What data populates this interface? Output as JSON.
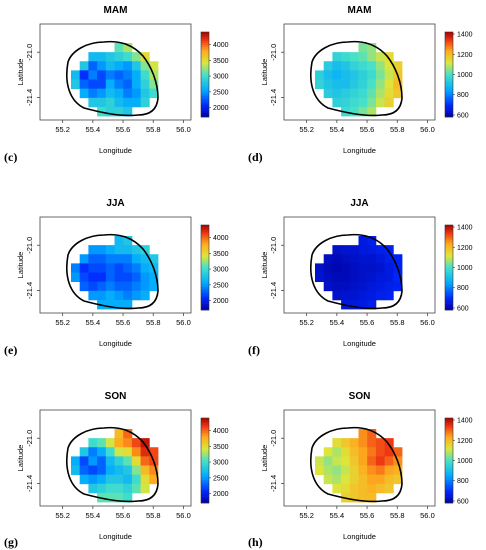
{
  "panel_letters": [
    "(c)",
    "(d)",
    "(e)",
    "(f)",
    "(g)",
    "(h)"
  ],
  "chart_data": [
    {
      "type": "heatmap",
      "title": "MAM",
      "xlabel": "Longitude",
      "ylabel": "Latitude",
      "xlim": [
        55.05,
        56.05
      ],
      "ylim": [
        -21.6,
        -20.75
      ],
      "x_ticks": [
        "55.2",
        "55.4",
        "55.6",
        "55.8",
        "56.0"
      ],
      "y_ticks": [
        "-21.0",
        "-21.4"
      ],
      "colorbar": {
        "min": 1700,
        "max": 4400,
        "ticks": [
          "2000",
          "2500",
          "3000",
          "3500",
          "4000"
        ]
      },
      "values": [
        [
          0,
          0,
          0,
          0,
          0,
          3100,
          3300,
          0,
          0,
          0
        ],
        [
          0,
          0,
          2700,
          2700,
          2800,
          2900,
          3000,
          3200,
          3500,
          0
        ],
        [
          0,
          2800,
          2300,
          2500,
          2700,
          2600,
          2500,
          2800,
          3200,
          3400
        ],
        [
          2700,
          2100,
          2400,
          2200,
          2400,
          2300,
          2400,
          2600,
          3000,
          3300
        ],
        [
          2800,
          2300,
          2200,
          2200,
          2600,
          2400,
          2300,
          2600,
          2900,
          3200
        ],
        [
          0,
          2600,
          2400,
          2500,
          2700,
          2600,
          2400,
          2500,
          2800,
          3000
        ],
        [
          0,
          0,
          2800,
          2800,
          2900,
          2700,
          2600,
          2600,
          2900,
          0
        ],
        [
          0,
          0,
          0,
          3000,
          2900,
          2900,
          2800,
          0,
          0,
          0
        ]
      ]
    },
    {
      "type": "heatmap",
      "title": "MAM",
      "xlabel": "Longitude",
      "ylabel": "Latitude",
      "xlim": [
        55.05,
        56.05
      ],
      "ylim": [
        -21.6,
        -20.75
      ],
      "x_ticks": [
        "55.2",
        "55.4",
        "55.6",
        "55.8",
        "56.0"
      ],
      "y_ticks": [
        "-21.0",
        "-21.4"
      ],
      "colorbar": {
        "min": 580,
        "max": 1420,
        "ticks": [
          "600",
          "800",
          "1000",
          "1200",
          "1400"
        ]
      },
      "values": [
        [
          0,
          0,
          0,
          0,
          0,
          1040,
          1060,
          0,
          0,
          0
        ],
        [
          0,
          0,
          960,
          980,
          1000,
          1020,
          1060,
          1100,
          1140,
          0
        ],
        [
          0,
          940,
          900,
          920,
          960,
          980,
          1000,
          1060,
          1120,
          1160
        ],
        [
          950,
          900,
          880,
          900,
          920,
          950,
          980,
          1040,
          1100,
          1180
        ],
        [
          960,
          920,
          900,
          900,
          930,
          960,
          1000,
          1060,
          1120,
          1200
        ],
        [
          0,
          940,
          920,
          940,
          960,
          980,
          1020,
          1080,
          1140,
          1180
        ],
        [
          0,
          0,
          950,
          960,
          980,
          1000,
          1040,
          1100,
          1160,
          0
        ],
        [
          0,
          0,
          0,
          980,
          1000,
          1040,
          1080,
          0,
          0,
          0
        ]
      ]
    },
    {
      "type": "heatmap",
      "title": "JJA",
      "xlabel": "Longitude",
      "ylabel": "Latitude",
      "xlim": [
        55.05,
        56.05
      ],
      "ylim": [
        -21.6,
        -20.75
      ],
      "x_ticks": [
        "55.2",
        "55.4",
        "55.6",
        "55.8",
        "56.0"
      ],
      "y_ticks": [
        "-21.0",
        "-21.4"
      ],
      "colorbar": {
        "min": 1700,
        "max": 4400,
        "ticks": [
          "2000",
          "2500",
          "3000",
          "3500",
          "4000"
        ]
      },
      "values": [
        [
          0,
          0,
          0,
          0,
          0,
          2700,
          2800,
          0,
          0,
          0
        ],
        [
          0,
          0,
          2500,
          2500,
          2600,
          2700,
          2700,
          2800,
          2900,
          0
        ],
        [
          0,
          2500,
          2300,
          2300,
          2400,
          2400,
          2400,
          2600,
          2700,
          2800
        ],
        [
          2400,
          2100,
          2200,
          2200,
          2300,
          2200,
          2300,
          2400,
          2600,
          2700
        ],
        [
          2500,
          2200,
          2100,
          2100,
          2300,
          2200,
          2200,
          2300,
          2500,
          2600
        ],
        [
          0,
          2300,
          2200,
          2300,
          2400,
          2300,
          2300,
          2400,
          2500,
          2600
        ],
        [
          0,
          0,
          2500,
          2500,
          2600,
          2500,
          2400,
          2500,
          2600,
          0
        ],
        [
          0,
          0,
          0,
          2600,
          2600,
          2600,
          2600,
          0,
          0,
          0
        ]
      ]
    },
    {
      "type": "heatmap",
      "title": "JJA",
      "xlabel": "Longitude",
      "ylabel": "Latitude",
      "xlim": [
        55.05,
        56.05
      ],
      "ylim": [
        -21.6,
        -20.75
      ],
      "x_ticks": [
        "55.2",
        "55.4",
        "55.6",
        "55.8",
        "56.0"
      ],
      "y_ticks": [
        "-21.0",
        "-21.4"
      ],
      "colorbar": {
        "min": 580,
        "max": 1420,
        "ticks": [
          "600",
          "800",
          "1000",
          "1200",
          "1400"
        ]
      },
      "values": [
        [
          0,
          0,
          0,
          0,
          0,
          660,
          670,
          0,
          0,
          0
        ],
        [
          0,
          0,
          630,
          640,
          640,
          650,
          660,
          670,
          680,
          0
        ],
        [
          0,
          620,
          610,
          620,
          630,
          640,
          640,
          650,
          670,
          680
        ],
        [
          630,
          610,
          600,
          610,
          620,
          630,
          630,
          640,
          660,
          680
        ],
        [
          640,
          620,
          610,
          610,
          620,
          630,
          640,
          650,
          660,
          690
        ],
        [
          0,
          630,
          620,
          620,
          630,
          640,
          650,
          660,
          670,
          680
        ],
        [
          0,
          0,
          630,
          640,
          640,
          650,
          660,
          670,
          680,
          0
        ],
        [
          0,
          0,
          0,
          650,
          650,
          660,
          670,
          0,
          0,
          0
        ]
      ]
    },
    {
      "type": "heatmap",
      "title": "SON",
      "xlabel": "Longitude",
      "ylabel": "Latitude",
      "xlim": [
        55.05,
        56.05
      ],
      "ylim": [
        -21.6,
        -20.75
      ],
      "x_ticks": [
        "55.2",
        "55.4",
        "55.6",
        "55.8",
        "56.0"
      ],
      "y_ticks": [
        "-21.0",
        "-21.4"
      ],
      "colorbar": {
        "min": 1700,
        "max": 4400,
        "ticks": [
          "2000",
          "2500",
          "3000",
          "3500",
          "4000"
        ]
      },
      "values": [
        [
          0,
          0,
          0,
          0,
          0,
          3700,
          4000,
          0,
          0,
          0
        ],
        [
          0,
          0,
          3000,
          3100,
          3400,
          3800,
          3900,
          4100,
          4300,
          0
        ],
        [
          0,
          2800,
          2400,
          2600,
          3000,
          3400,
          3500,
          3900,
          4200,
          4100
        ],
        [
          2600,
          2200,
          2500,
          2300,
          2700,
          2900,
          3100,
          3500,
          4000,
          4100
        ],
        [
          2700,
          2300,
          2200,
          2300,
          2600,
          2700,
          2800,
          3200,
          3700,
          3900
        ],
        [
          0,
          2600,
          2500,
          2600,
          2800,
          2800,
          2700,
          3000,
          3500,
          3800
        ],
        [
          0,
          0,
          2800,
          2900,
          3000,
          3000,
          2900,
          3100,
          3400,
          0
        ],
        [
          0,
          0,
          0,
          3100,
          3100,
          3100,
          3000,
          0,
          0,
          0
        ]
      ]
    },
    {
      "type": "heatmap",
      "title": "SON",
      "xlabel": "Longitude",
      "ylabel": "Latitude",
      "xlim": [
        55.05,
        56.05
      ],
      "ylim": [
        -21.6,
        -20.75
      ],
      "x_ticks": [
        "55.2",
        "55.4",
        "55.6",
        "55.8",
        "56.0"
      ],
      "y_ticks": [
        "-21.0",
        "-21.4"
      ],
      "colorbar": {
        "min": 580,
        "max": 1420,
        "ticks": [
          "600",
          "800",
          "1000",
          "1200",
          "1400"
        ]
      },
      "values": [
        [
          0,
          0,
          0,
          0,
          0,
          1260,
          1300,
          0,
          0,
          0
        ],
        [
          0,
          0,
          1140,
          1180,
          1220,
          1260,
          1300,
          1320,
          1340,
          0
        ],
        [
          0,
          1120,
          1080,
          1140,
          1200,
          1240,
          1280,
          1320,
          1340,
          1300
        ],
        [
          1100,
          1060,
          1100,
          1120,
          1180,
          1240,
          1300,
          1340,
          1300,
          1260
        ],
        [
          1120,
          1080,
          1060,
          1100,
          1160,
          1220,
          1260,
          1280,
          1240,
          1220
        ],
        [
          0,
          1100,
          1080,
          1120,
          1160,
          1200,
          1240,
          1240,
          1200,
          1180
        ],
        [
          0,
          0,
          1120,
          1140,
          1180,
          1200,
          1220,
          1200,
          1180,
          0
        ],
        [
          0,
          0,
          0,
          1160,
          1180,
          1200,
          1200,
          0,
          0,
          0
        ]
      ]
    }
  ]
}
